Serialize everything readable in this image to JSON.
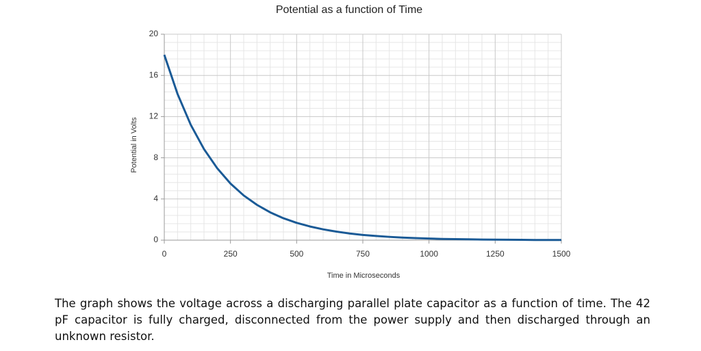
{
  "chart_data": {
    "type": "line",
    "title": "Potential as a function of Time",
    "x_label": "Time in Microseconds",
    "y_label": "Potential in Volts",
    "x": [
      0,
      50,
      100,
      150,
      200,
      250,
      300,
      350,
      400,
      450,
      500,
      550,
      600,
      650,
      700,
      750,
      800,
      850,
      900,
      950,
      1000,
      1050,
      1100,
      1150,
      1200,
      1250,
      1300,
      1350,
      1400,
      1450,
      1500
    ],
    "series": [
      {
        "name": "Potential",
        "color": "#1a5a96",
        "values": [
          18,
          14.2,
          11.2,
          8.84,
          6.98,
          5.5,
          4.34,
          3.43,
          2.7,
          2.13,
          1.68,
          1.33,
          1.05,
          0.83,
          0.65,
          0.51,
          0.41,
          0.32,
          0.25,
          0.2,
          0.16,
          0.12,
          0.1,
          0.08,
          0.06,
          0.05,
          0.04,
          0.03,
          0.02,
          0.02,
          0.02
        ]
      }
    ],
    "xlim": [
      0,
      1500
    ],
    "xticks": [
      0,
      250,
      500,
      750,
      1000,
      1250,
      1500
    ],
    "ylim": [
      0,
      20
    ],
    "yticks": [
      0,
      4,
      8,
      12,
      16,
      20
    ],
    "grid": true,
    "minor_grid_divisions": 5,
    "legend": false
  },
  "caption": "The graph shows the voltage across a discharging parallel plate capacitor as a function of time. The 42 pF capacitor is fully charged, disconnected from the power supply and then discharged through an unknown resistor."
}
